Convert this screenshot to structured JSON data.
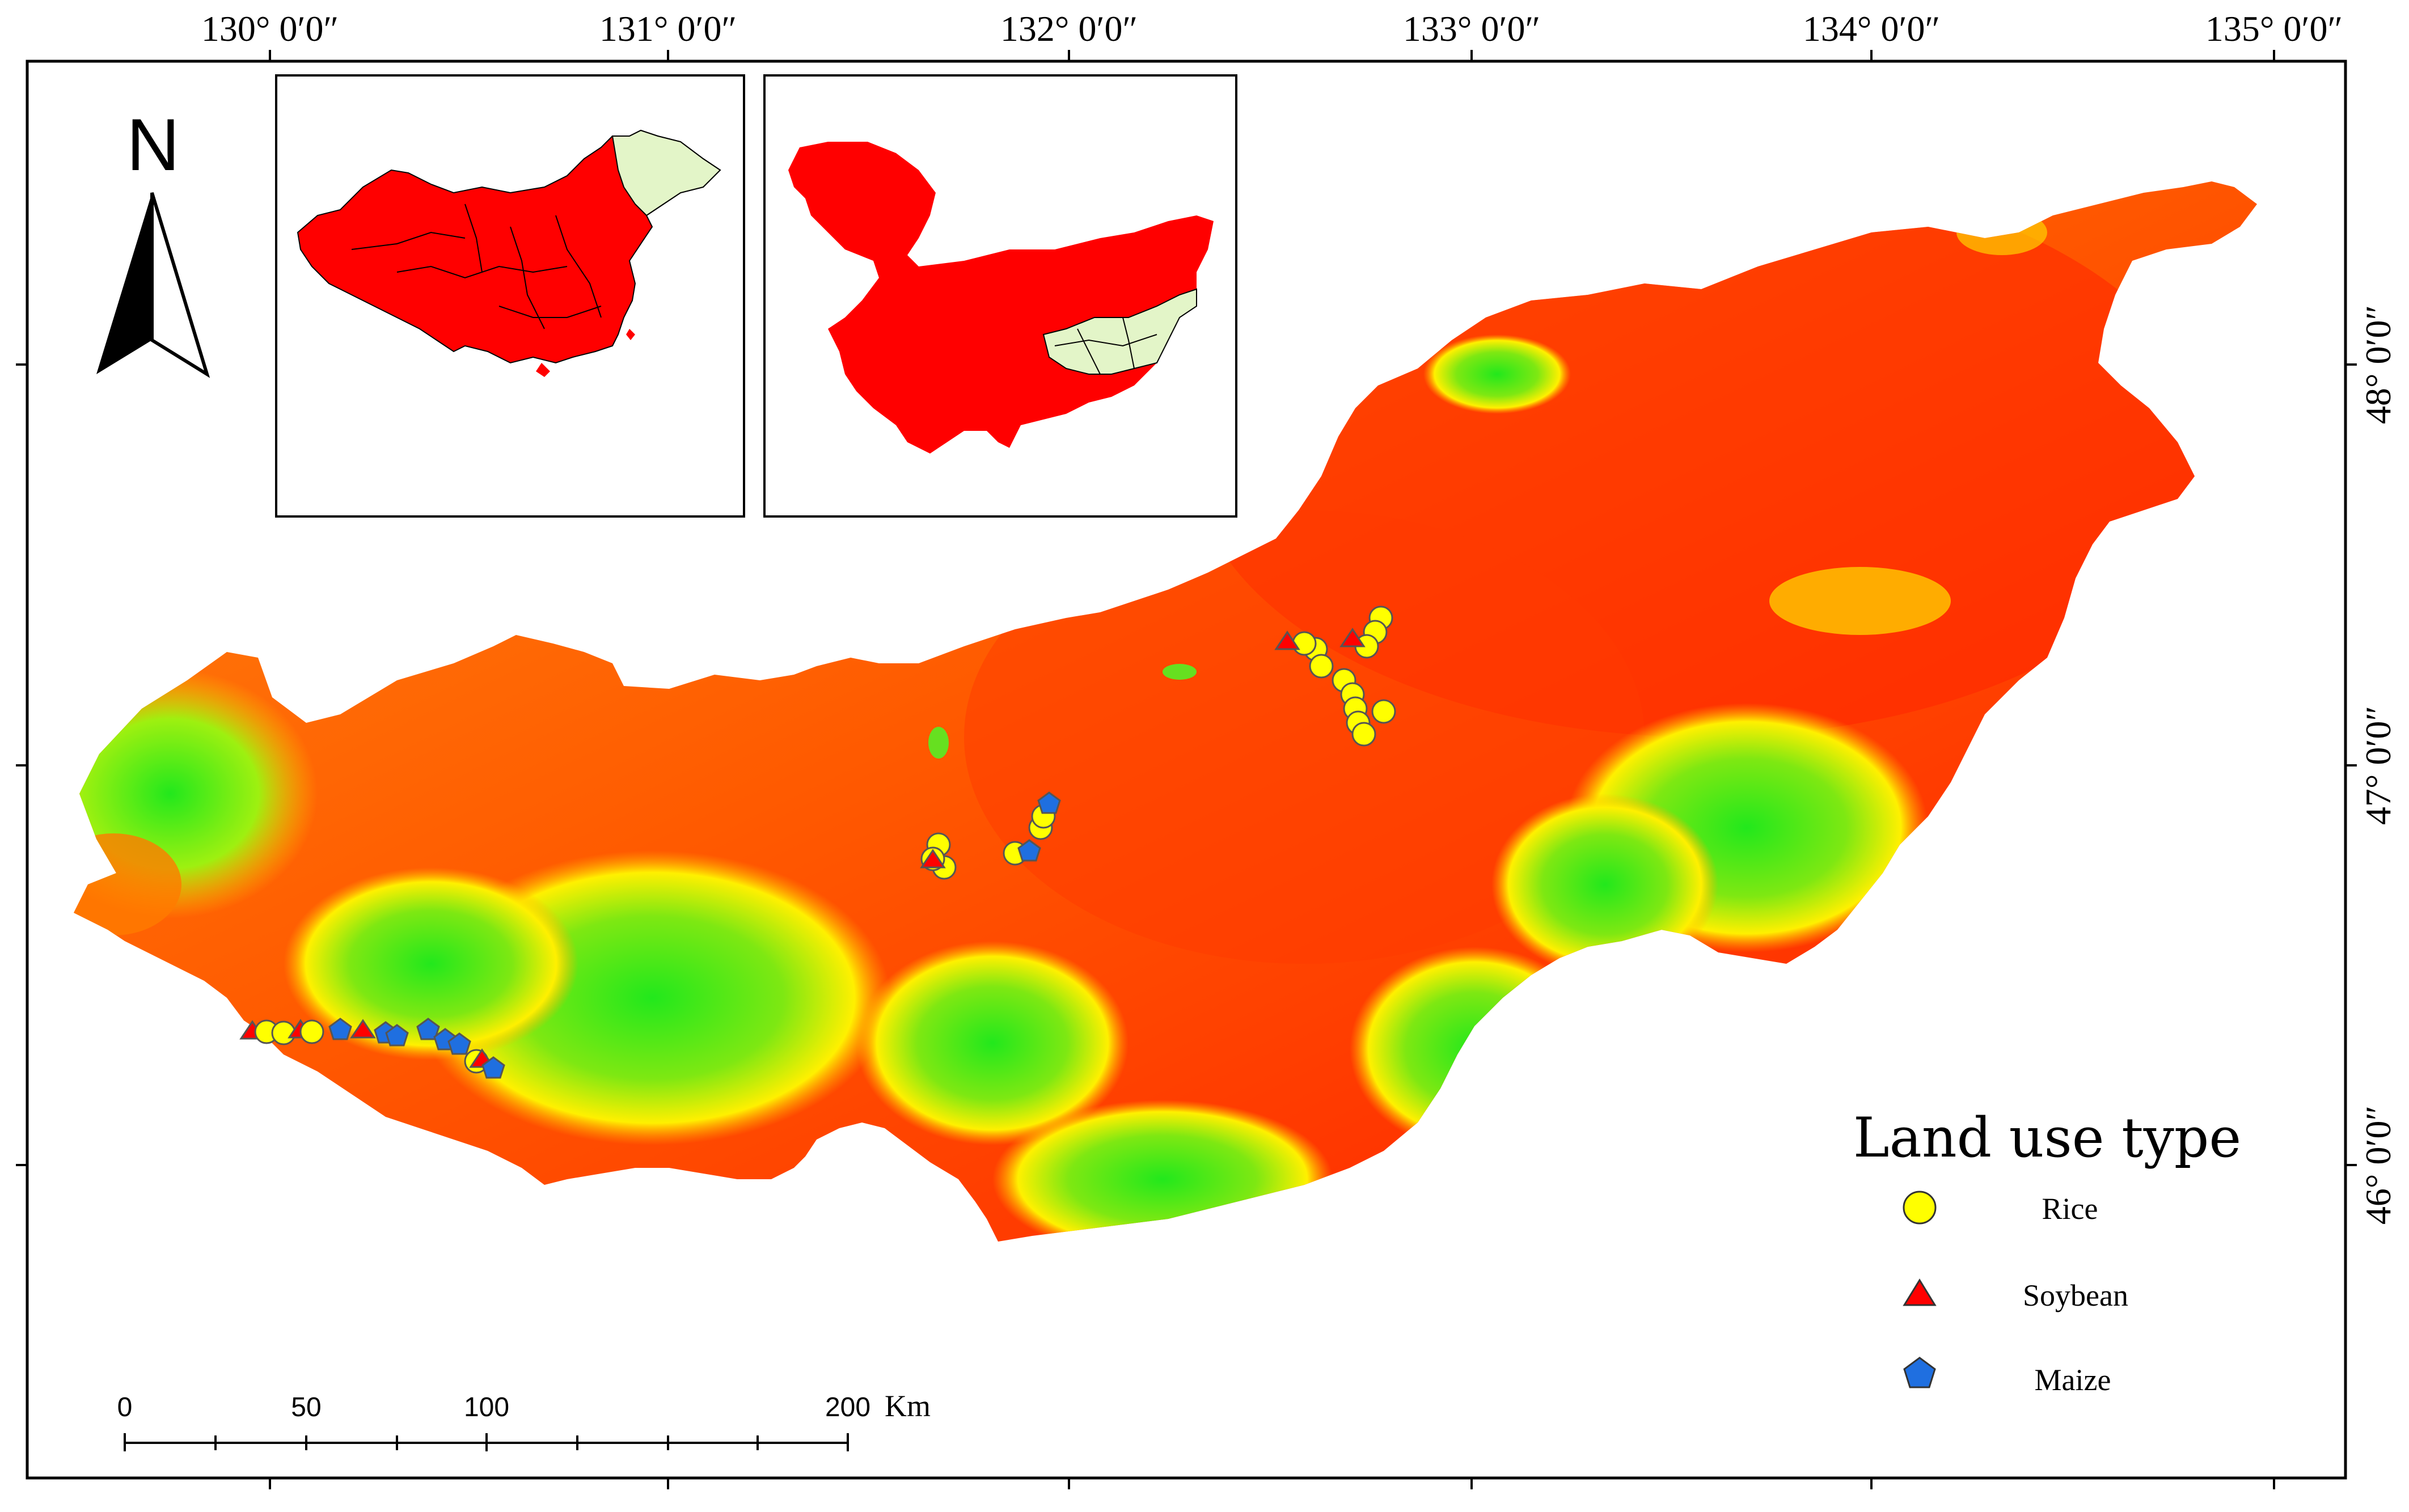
{
  "map": {
    "longitude_labels": [
      "130° 0′0″",
      "131° 0′0″",
      "132° 0′0″",
      "133° 0′0″",
      "134° 0′0″",
      "135° 0′0″"
    ],
    "latitude_labels": [
      "48° 0′0″",
      "47° 0′0″",
      "46° 0′0″"
    ],
    "north_arrow": {
      "letter": "N",
      "icon": "north-arrow-icon"
    },
    "legend": {
      "title": "Land use type",
      "items": [
        {
          "label": "Rice",
          "symbol": "circle",
          "color": "#ffff00"
        },
        {
          "label": "Soybean",
          "symbol": "triangle",
          "color": "#ff0000"
        },
        {
          "label": "Maize",
          "symbol": "pentagon",
          "color": "#1f6fe0"
        }
      ]
    },
    "scale_bar": {
      "ticks": [
        "0",
        "50",
        "100",
        "200"
      ],
      "unit": "Km"
    },
    "inset_maps": [
      {
        "name": "china-inset",
        "highlight_color": "#ff0000",
        "study_area_color": "#e3f5c8"
      },
      {
        "name": "heilongjiang-inset",
        "highlight_color": "#ff0000",
        "study_area_color": "#e3f5c8"
      }
    ],
    "colors": {
      "lowland": "#ff2400",
      "midland": "#ff7a00",
      "upland": "#ffee00",
      "highland": "#22e81c"
    }
  }
}
